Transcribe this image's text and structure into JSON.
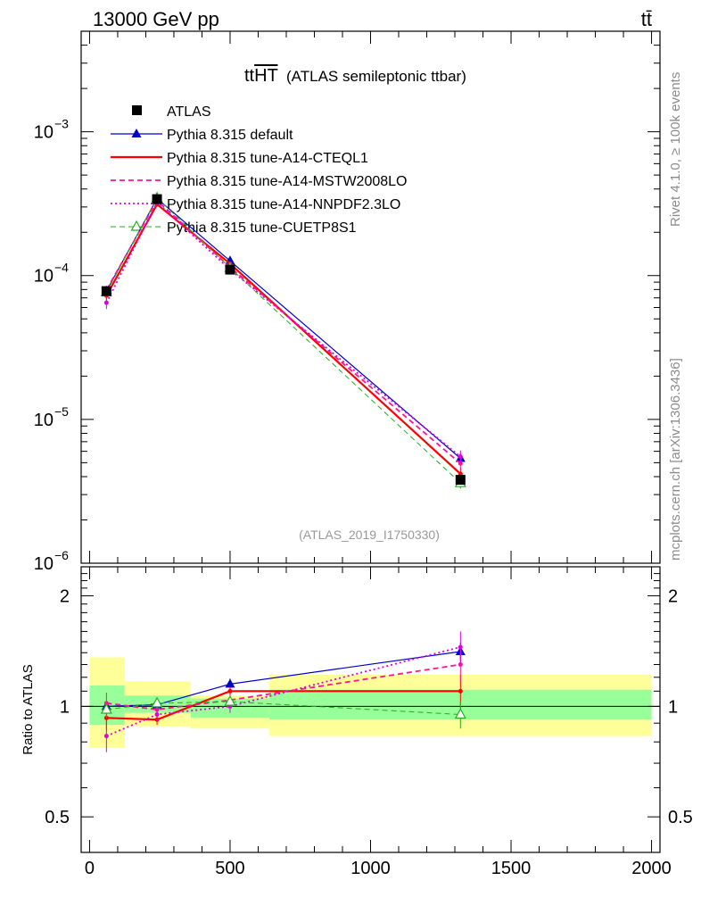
{
  "header": {
    "left": "13000 GeV pp",
    "right": "tt̄"
  },
  "side_labels": {
    "top": "Rivet 4.1.0, ≥ 100k events",
    "bottom": "mcplots.cern.ch [arXiv:1306.3436]"
  },
  "chart_data": {
    "type": "line",
    "title": "tt",
    "title_over": "HT",
    "subtitle": "(ATLAS semileptonic ttbar)",
    "watermark": "(ATLAS_2019_I1750330)",
    "x_ticks": [
      0,
      500,
      1000,
      1500,
      2000
    ],
    "x_tick_labels": [
      "0",
      "500",
      "1000",
      "1500",
      "2000"
    ],
    "xlim": [
      -30,
      2030
    ],
    "ylim": [
      1e-06,
      0.005
    ],
    "y_ticks": [
      1e-06,
      1e-05,
      0.0001,
      0.001
    ],
    "y_tick_labels": [
      "10",
      "10",
      "10",
      "10"
    ],
    "y_tick_exps": [
      "−6",
      "−5",
      "−4",
      "−3"
    ],
    "ratio": {
      "ylabel": "Ratio to ATLAS",
      "ylim": [
        0.4,
        2.4
      ],
      "ticks": [
        0.5,
        1,
        2
      ],
      "tick_labels": [
        "0.5",
        "1",
        "2"
      ]
    },
    "bin_edges": [
      0,
      125,
      360,
      640,
      2000
    ],
    "x": [
      60,
      240,
      500,
      1320
    ],
    "data": {
      "name": "ATLAS",
      "values": [
        7.8e-05,
        0.00034,
        0.00011,
        3.8e-06
      ],
      "band_inner": [
        [
          0.89,
          1.14
        ],
        [
          0.96,
          1.07
        ],
        [
          0.93,
          1.05
        ],
        [
          0.92,
          1.11
        ]
      ],
      "band_outer": [
        [
          0.77,
          1.36
        ],
        [
          0.88,
          1.17
        ],
        [
          0.87,
          1.07
        ],
        [
          0.83,
          1.22
        ]
      ]
    },
    "series": [
      {
        "name": "Pythia 8.315 default",
        "color": "#0000cc",
        "style": "solid",
        "width": 1.2,
        "marker": "triangle",
        "ratio": [
          1.0,
          1.01,
          1.15,
          1.41
        ],
        "ratio_err": [
          0.03,
          0.02,
          0.04,
          0.08
        ]
      },
      {
        "name": "Pythia 8.315 tune-A14-CTEQL1",
        "color": "#ff0000",
        "style": "solid",
        "width": 2.2,
        "marker": "dot",
        "ratio": [
          0.93,
          0.92,
          1.1,
          1.1
        ],
        "ratio_err": [
          0.07,
          0.03,
          0.03,
          0.12
        ]
      },
      {
        "name": "Pythia 8.315 tune-A14-MSTW2008LO",
        "color": "#ff1493",
        "style": "dashed",
        "width": 1.8,
        "marker": "dot",
        "ratio": [
          1.02,
          0.98,
          1.04,
          1.3
        ],
        "ratio_err": [
          0.07,
          0.03,
          0.03,
          0.13
        ]
      },
      {
        "name": "Pythia 8.315 tune-A14-NNPDF2.3LO",
        "color": "#dd00dd",
        "style": "dotted",
        "width": 1.8,
        "marker": "dot",
        "ratio": [
          0.83,
          0.95,
          1.0,
          1.45
        ],
        "ratio_err": [
          0.08,
          0.04,
          0.04,
          0.15
        ]
      },
      {
        "name": "Pythia 8.315 tune-CUETP8S1",
        "color": "#20b020",
        "style": "dashed",
        "width": 1.0,
        "marker": "triangle-open",
        "ratio": [
          0.98,
          1.02,
          1.03,
          0.95
        ],
        "ratio_err": [
          0.05,
          0.03,
          0.03,
          0.08
        ]
      }
    ]
  }
}
